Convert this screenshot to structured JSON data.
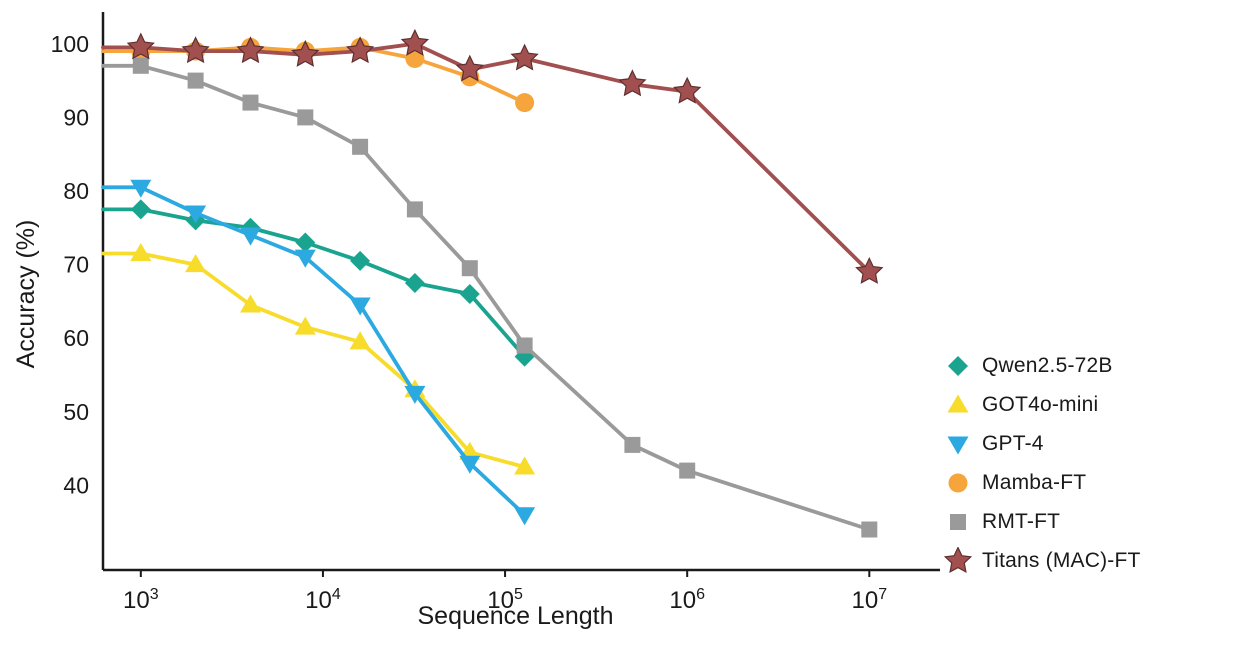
{
  "chart_data": {
    "type": "line",
    "title": "",
    "xlabel": "Sequence Length",
    "ylabel": "Accuracy (%)",
    "x_scale": "log",
    "grid": false,
    "legend_position": "right-outside",
    "xlim": [
      620,
      21000000
    ],
    "ylim": [
      28.5,
      103.5
    ],
    "x_ticks": [
      1000,
      10000,
      100000,
      1000000,
      10000000
    ],
    "y_ticks": [
      40,
      50,
      60,
      70,
      80,
      90,
      100
    ],
    "axis_color": "#1a1a1a",
    "series": [
      {
        "name": "Qwen2.5-72B",
        "color": "#1AA490",
        "marker": "diamond",
        "x": [
          1000,
          2000,
          4000,
          8000,
          16000,
          32000,
          64000,
          128000
        ],
        "y": [
          77.5,
          76,
          75,
          73,
          70.5,
          67.5,
          66,
          57.5
        ]
      },
      {
        "name": "GOT4o-mini",
        "color": "#F7DC2C",
        "marker": "triangle-up",
        "x": [
          1000,
          2000,
          4000,
          8000,
          16000,
          32000,
          64000,
          128000
        ],
        "y": [
          71.5,
          70,
          64.5,
          61.5,
          59.5,
          53,
          44.5,
          42.5
        ]
      },
      {
        "name": "GPT-4",
        "color": "#2BA9E0",
        "marker": "triangle-down",
        "x": [
          1000,
          2000,
          4000,
          8000,
          16000,
          32000,
          64000,
          128000
        ],
        "y": [
          80.5,
          77,
          74,
          71,
          64.5,
          52.5,
          43,
          36
        ]
      },
      {
        "name": "Mamba-FT",
        "color": "#F5A53C",
        "marker": "circle",
        "x": [
          1000,
          2000,
          4000,
          8000,
          16000,
          32000,
          64000,
          128000
        ],
        "y": [
          99,
          99,
          99.5,
          99,
          99.5,
          98,
          95.5,
          92
        ]
      },
      {
        "name": "RMT-FT",
        "color": "#9A9A9A",
        "marker": "square",
        "x": [
          1000,
          2000,
          4000,
          8000,
          16000,
          32000,
          64000,
          128000,
          500000,
          1000000,
          10000000
        ],
        "y": [
          97,
          95,
          92,
          90,
          86,
          77.5,
          69.5,
          59,
          45.5,
          42,
          34
        ]
      },
      {
        "name": "Titans (MAC)-FT",
        "color": "#A14F4F",
        "marker": "star",
        "x": [
          1000,
          2000,
          4000,
          8000,
          16000,
          32000,
          64000,
          128000,
          500000,
          1000000,
          10000000
        ],
        "y": [
          99.5,
          99,
          99,
          98.5,
          99,
          100,
          96.5,
          98,
          94.5,
          93.5,
          69
        ]
      }
    ]
  }
}
